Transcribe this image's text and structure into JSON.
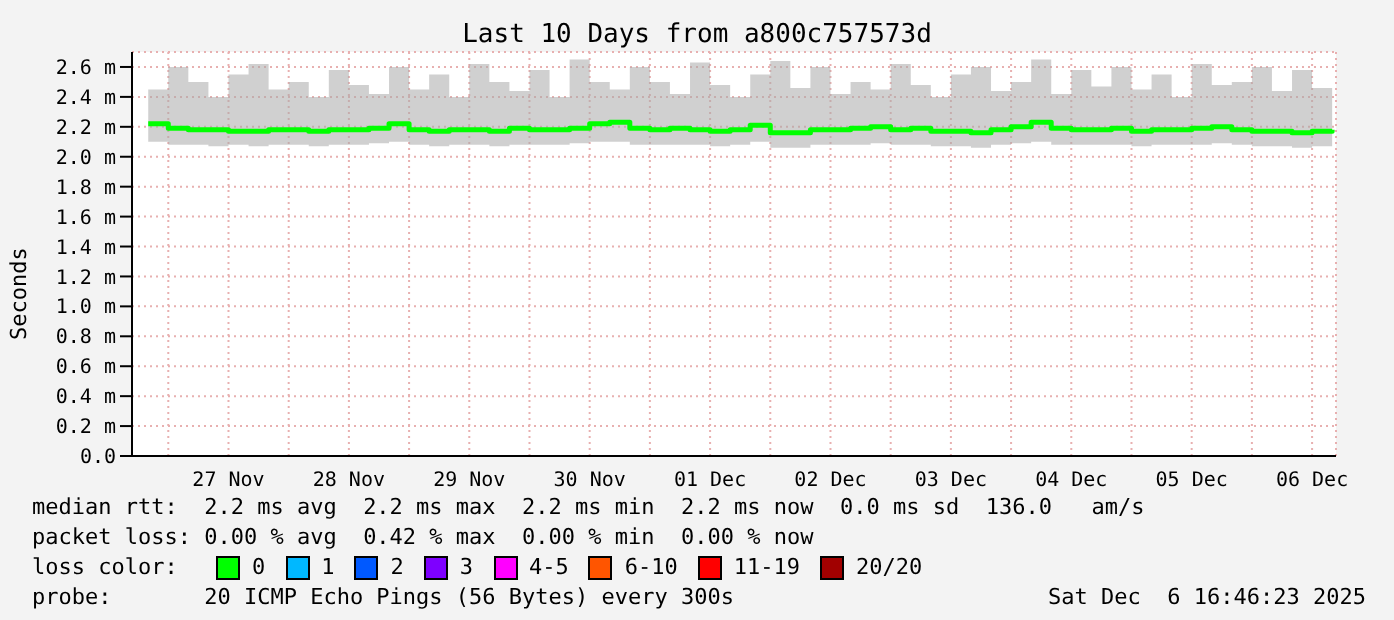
{
  "chart_data": {
    "type": "step",
    "title": "Last 10 Days from a800c757573d",
    "ylabel": "Seconds",
    "legend_title": "loss color:",
    "legend": "bottom",
    "grid": true,
    "marker": "none",
    "line_style": "solid",
    "x": [
      "2025-11-26T20:00",
      "2025-11-27T00:00",
      "2025-11-27T04:00",
      "2025-11-27T08:00",
      "2025-11-27T12:00",
      "2025-11-27T16:00",
      "2025-11-27T20:00",
      "2025-11-28T00:00",
      "2025-11-28T04:00",
      "2025-11-28T08:00",
      "2025-11-28T12:00",
      "2025-11-28T16:00",
      "2025-11-28T20:00",
      "2025-11-29T00:00",
      "2025-11-29T04:00",
      "2025-11-29T08:00",
      "2025-11-29T12:00",
      "2025-11-29T16:00",
      "2025-11-29T20:00",
      "2025-11-30T00:00",
      "2025-11-30T04:00",
      "2025-11-30T08:00",
      "2025-11-30T12:00",
      "2025-11-30T16:00",
      "2025-11-30T20:00",
      "2025-12-01T00:00",
      "2025-12-01T04:00",
      "2025-12-01T08:00",
      "2025-12-01T12:00",
      "2025-12-01T16:00",
      "2025-12-01T20:00",
      "2025-12-02T00:00",
      "2025-12-02T04:00",
      "2025-12-02T08:00",
      "2025-12-02T12:00",
      "2025-12-02T16:00",
      "2025-12-02T20:00",
      "2025-12-03T00:00",
      "2025-12-03T04:00",
      "2025-12-03T08:00",
      "2025-12-03T12:00",
      "2025-12-03T16:00",
      "2025-12-03T20:00",
      "2025-12-04T00:00",
      "2025-12-04T04:00",
      "2025-12-04T08:00",
      "2025-12-04T12:00",
      "2025-12-04T16:00",
      "2025-12-04T20:00",
      "2025-12-05T00:00",
      "2025-12-05T04:00",
      "2025-12-05T08:00",
      "2025-12-05T12:00",
      "2025-12-05T16:00",
      "2025-12-05T20:00",
      "2025-12-06T00:00",
      "2025-12-06T04:00",
      "2025-12-06T08:00",
      "2025-12-06T12:00",
      "2025-12-06T16:00"
    ],
    "series": [
      {
        "name": "0",
        "color": "#00ff00",
        "values": [
          2.22,
          2.19,
          2.18,
          2.18,
          2.17,
          2.17,
          2.18,
          2.18,
          2.17,
          2.18,
          2.18,
          2.19,
          2.22,
          2.18,
          2.17,
          2.18,
          2.18,
          2.17,
          2.19,
          2.18,
          2.18,
          2.19,
          2.22,
          2.23,
          2.19,
          2.18,
          2.19,
          2.18,
          2.17,
          2.18,
          2.21,
          2.16,
          2.16,
          2.18,
          2.18,
          2.19,
          2.2,
          2.18,
          2.19,
          2.17,
          2.17,
          2.16,
          2.18,
          2.2,
          2.23,
          2.19,
          2.18,
          2.18,
          2.19,
          2.17,
          2.18,
          2.18,
          2.19,
          2.2,
          2.18,
          2.17,
          2.17,
          2.16,
          2.17,
          2.18
        ],
        "lower": [
          2.1,
          2.08,
          2.08,
          2.07,
          2.08,
          2.07,
          2.08,
          2.08,
          2.07,
          2.08,
          2.08,
          2.09,
          2.1,
          2.08,
          2.07,
          2.08,
          2.08,
          2.07,
          2.08,
          2.08,
          2.08,
          2.09,
          2.1,
          2.1,
          2.08,
          2.08,
          2.08,
          2.08,
          2.07,
          2.08,
          2.1,
          2.06,
          2.06,
          2.08,
          2.08,
          2.08,
          2.09,
          2.08,
          2.08,
          2.07,
          2.07,
          2.06,
          2.08,
          2.09,
          2.1,
          2.08,
          2.08,
          2.08,
          2.08,
          2.07,
          2.08,
          2.08,
          2.08,
          2.09,
          2.08,
          2.07,
          2.07,
          2.06,
          2.07,
          2.08
        ],
        "upper": [
          2.45,
          2.6,
          2.5,
          2.4,
          2.55,
          2.62,
          2.45,
          2.5,
          2.4,
          2.58,
          2.48,
          2.42,
          2.6,
          2.45,
          2.55,
          2.4,
          2.62,
          2.5,
          2.44,
          2.58,
          2.4,
          2.65,
          2.5,
          2.45,
          2.6,
          2.5,
          2.42,
          2.63,
          2.48,
          2.4,
          2.55,
          2.64,
          2.46,
          2.6,
          2.42,
          2.5,
          2.45,
          2.62,
          2.48,
          2.4,
          2.55,
          2.6,
          2.44,
          2.5,
          2.65,
          2.42,
          2.58,
          2.47,
          2.6,
          2.45,
          2.55,
          2.4,
          2.62,
          2.48,
          2.5,
          2.6,
          2.44,
          2.58,
          2.46,
          2.4
        ]
      },
      {
        "name": "1",
        "color": "#00b8ff",
        "values": [
          null,
          null,
          null,
          null,
          null,
          null,
          null,
          null,
          null,
          null,
          null,
          null,
          null,
          null,
          null,
          null,
          null,
          null,
          null,
          null,
          null,
          null,
          null,
          null,
          null,
          null,
          null,
          null,
          null,
          null,
          null,
          null,
          null,
          null,
          null,
          null,
          null,
          null,
          null,
          null,
          null,
          null,
          null,
          null,
          null,
          null,
          null,
          null,
          null,
          null,
          null,
          null,
          null,
          null,
          null,
          null,
          null,
          null,
          null,
          null
        ]
      },
      {
        "name": "2",
        "color": "#0059ff",
        "values": [
          null,
          null,
          null,
          null,
          null,
          null,
          null,
          null,
          null,
          null,
          null,
          null,
          null,
          null,
          null,
          null,
          null,
          null,
          null,
          null,
          null,
          null,
          null,
          null,
          null,
          null,
          null,
          null,
          null,
          null,
          null,
          null,
          null,
          null,
          null,
          null,
          null,
          null,
          null,
          null,
          null,
          null,
          null,
          null,
          null,
          null,
          null,
          null,
          null,
          null,
          null,
          null,
          null,
          null,
          null,
          null,
          null,
          null,
          null,
          null
        ]
      },
      {
        "name": "3",
        "color": "#7e00ff",
        "values": [
          null,
          null,
          null,
          null,
          null,
          null,
          null,
          null,
          null,
          null,
          null,
          null,
          null,
          null,
          null,
          null,
          null,
          null,
          null,
          null,
          null,
          null,
          null,
          null,
          null,
          null,
          null,
          null,
          null,
          null,
          null,
          null,
          null,
          null,
          null,
          null,
          null,
          null,
          null,
          null,
          null,
          null,
          null,
          null,
          null,
          null,
          null,
          null,
          null,
          null,
          null,
          null,
          null,
          null,
          null,
          null,
          null,
          null,
          null,
          null
        ]
      },
      {
        "name": "4-5",
        "color": "#ff00ff",
        "values": [
          null,
          null,
          null,
          null,
          null,
          null,
          null,
          null,
          null,
          null,
          null,
          null,
          null,
          null,
          null,
          null,
          null,
          null,
          null,
          null,
          null,
          null,
          null,
          null,
          null,
          null,
          null,
          null,
          null,
          null,
          null,
          null,
          null,
          null,
          null,
          null,
          null,
          null,
          null,
          null,
          null,
          null,
          null,
          null,
          null,
          null,
          null,
          null,
          null,
          null,
          null,
          null,
          null,
          null,
          null,
          null,
          null,
          null,
          null,
          null
        ]
      },
      {
        "name": "6-10",
        "color": "#ff5500",
        "values": [
          null,
          null,
          null,
          null,
          null,
          null,
          null,
          null,
          null,
          null,
          null,
          null,
          null,
          null,
          null,
          null,
          null,
          null,
          null,
          null,
          null,
          null,
          null,
          null,
          null,
          null,
          null,
          null,
          null,
          null,
          null,
          null,
          null,
          null,
          null,
          null,
          null,
          null,
          null,
          null,
          null,
          null,
          null,
          null,
          null,
          null,
          null,
          null,
          null,
          null,
          null,
          null,
          null,
          null,
          null,
          null,
          null,
          null,
          null,
          null
        ]
      },
      {
        "name": "11-19",
        "color": "#ff0000",
        "values": [
          null,
          null,
          null,
          null,
          null,
          null,
          null,
          null,
          null,
          null,
          null,
          null,
          null,
          null,
          null,
          null,
          null,
          null,
          null,
          null,
          null,
          null,
          null,
          null,
          null,
          null,
          null,
          null,
          null,
          null,
          null,
          null,
          null,
          null,
          null,
          null,
          null,
          null,
          null,
          null,
          null,
          null,
          null,
          null,
          null,
          null,
          null,
          null,
          null,
          null,
          null,
          null,
          null,
          null,
          null,
          null,
          null,
          null,
          null,
          null
        ]
      },
      {
        "name": "20/20",
        "color": "#a10000",
        "values": [
          null,
          null,
          null,
          null,
          null,
          null,
          null,
          null,
          null,
          null,
          null,
          null,
          null,
          null,
          null,
          null,
          null,
          null,
          null,
          null,
          null,
          null,
          null,
          null,
          null,
          null,
          null,
          null,
          null,
          null,
          null,
          null,
          null,
          null,
          null,
          null,
          null,
          null,
          null,
          null,
          null,
          null,
          null,
          null,
          null,
          null,
          null,
          null,
          null,
          null,
          null,
          null,
          null,
          null,
          null,
          null,
          null,
          null,
          null,
          null
        ]
      }
    ],
    "xlim": [
      "2025-11-26T16:46",
      "2025-12-06T16:46"
    ],
    "xticks": [
      {
        "value": "2025-11-27T00:00",
        "label": null
      },
      {
        "value": "2025-11-27T12:00",
        "label": "27 Nov"
      },
      {
        "value": "2025-11-28T00:00",
        "label": null
      },
      {
        "value": "2025-11-28T12:00",
        "label": "28 Nov"
      },
      {
        "value": "2025-11-29T00:00",
        "label": null
      },
      {
        "value": "2025-11-29T12:00",
        "label": "29 Nov"
      },
      {
        "value": "2025-11-30T00:00",
        "label": null
      },
      {
        "value": "2025-11-30T12:00",
        "label": "30 Nov"
      },
      {
        "value": "2025-12-01T00:00",
        "label": null
      },
      {
        "value": "2025-12-01T12:00",
        "label": "01 Dec"
      },
      {
        "value": "2025-12-02T00:00",
        "label": null
      },
      {
        "value": "2025-12-02T12:00",
        "label": "02 Dec"
      },
      {
        "value": "2025-12-03T00:00",
        "label": null
      },
      {
        "value": "2025-12-03T12:00",
        "label": "03 Dec"
      },
      {
        "value": "2025-12-04T00:00",
        "label": null
      },
      {
        "value": "2025-12-04T12:00",
        "label": "04 Dec"
      },
      {
        "value": "2025-12-05T00:00",
        "label": null
      },
      {
        "value": "2025-12-05T12:00",
        "label": "05 Dec"
      },
      {
        "value": "2025-12-06T00:00",
        "label": null
      },
      {
        "value": "2025-12-06T12:00",
        "label": "06 Dec"
      }
    ],
    "ylim": [
      0,
      2.7
    ],
    "yticks": [
      {
        "value": 0,
        "label": "0.0"
      },
      {
        "value": 0.2,
        "label": "0.2 m"
      },
      {
        "value": 0.4,
        "label": "0.4 m"
      },
      {
        "value": 0.6,
        "label": "0.6 m"
      },
      {
        "value": 0.8,
        "label": "0.8 m"
      },
      {
        "value": 1.0,
        "label": "1.0 m"
      },
      {
        "value": 1.2,
        "label": "1.2 m"
      },
      {
        "value": 1.4,
        "label": "1.4 m"
      },
      {
        "value": 1.6,
        "label": "1.6 m"
      },
      {
        "value": 1.8,
        "label": "1.8 m"
      },
      {
        "value": 2.0,
        "label": "2.0 m"
      },
      {
        "value": 2.2,
        "label": "2.2 m"
      },
      {
        "value": 2.4,
        "label": "2.4 m"
      },
      {
        "value": 2.6,
        "label": "2.6 m"
      }
    ],
    "annotations": [
      "median rtt:  2.2 ms avg  2.2 ms max  2.2 ms min  2.2 ms now  0.0 ms sd  136.0   am/s",
      "packet loss: 0.00 % avg  0.42 % max  0.00 % min  0.00 % now",
      "probe:       20 ICMP Echo Pings (56 Bytes) every 300s",
      "Sat Dec  6 16:46:23 2025"
    ]
  }
}
